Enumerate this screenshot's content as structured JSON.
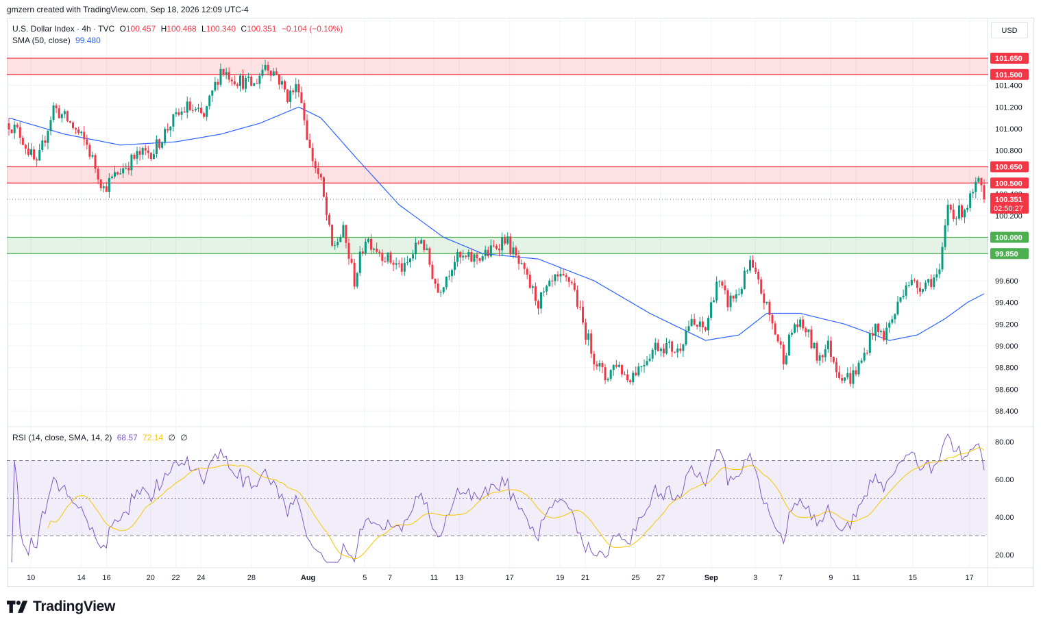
{
  "credit": "gmzern created with TradingView.com, Sep 18, 2026 12:09 UTC-4",
  "legend": {
    "symbol": "U.S. Dollar Index · 4h · TVC",
    "o_label": "O",
    "o_value": "100.457",
    "h_label": "H",
    "h_value": "100.468",
    "l_label": "L",
    "l_value": "100.340",
    "c_label": "C",
    "c_value": "100.351",
    "change": "−0.104 (−0.10%)",
    "sma_label": "SMA (50, close)",
    "sma_value": "99.480",
    "rsi_label": "RSI (14, close, SMA, 14, 2)",
    "rsi_value": "68.57",
    "rsi_ma_value": "72.14",
    "rsi_extra1": "∅",
    "rsi_extra2": "∅"
  },
  "currency": "USD",
  "brand": "TradingView",
  "colors": {
    "up": "#089981",
    "down": "#f23645",
    "sma": "#2962ff",
    "rsi": "#7e57c2",
    "rsi_ma": "#f7c600",
    "resistance_zone": "#f23645",
    "support_zone": "#4caf50"
  },
  "chart_data": [
    {
      "type": "candlestick",
      "ylim": [
        98.3,
        101.8
      ],
      "y_ticks": [
        "101.400",
        "101.200",
        "101.000",
        "100.800",
        "100.400",
        "100.200",
        "99.600",
        "99.400",
        "99.200",
        "99.000",
        "98.800",
        "98.600",
        "98.400"
      ],
      "x_ticks": [
        "10",
        "14",
        "16",
        "20",
        "22",
        "24",
        "28",
        "Aug",
        "5",
        "7",
        "11",
        "13",
        "17",
        "19",
        "21",
        "25",
        "27",
        "Sep",
        "3",
        "7",
        "9",
        "11",
        "15",
        "17"
      ],
      "zones": [
        {
          "kind": "resistance",
          "from": 101.5,
          "to": 101.65,
          "labels": [
            "101.650",
            "101.500"
          ]
        },
        {
          "kind": "resistance",
          "from": 100.5,
          "to": 100.65,
          "labels": [
            "100.650",
            "100.500"
          ]
        },
        {
          "kind": "support",
          "from": 99.85,
          "to": 100.0,
          "labels": [
            "100.000",
            "99.850"
          ]
        }
      ],
      "last_price": {
        "value": 100.351,
        "label": "100.351",
        "countdown": "02:50:27"
      },
      "path_anchors": [
        [
          0,
          101.05
        ],
        [
          4,
          100.95
        ],
        [
          10,
          100.65
        ],
        [
          16,
          101.2
        ],
        [
          22,
          101.05
        ],
        [
          28,
          100.85
        ],
        [
          34,
          100.45
        ],
        [
          40,
          100.62
        ],
        [
          46,
          100.75
        ],
        [
          52,
          100.8
        ],
        [
          58,
          101.05
        ],
        [
          64,
          101.2
        ],
        [
          70,
          101.1
        ],
        [
          76,
          101.55
        ],
        [
          82,
          101.45
        ],
        [
          88,
          101.4
        ],
        [
          92,
          101.6
        ],
        [
          96,
          101.5
        ],
        [
          100,
          101.3
        ],
        [
          104,
          101.4
        ],
        [
          108,
          100.8
        ],
        [
          112,
          100.5
        ],
        [
          116,
          99.9
        ],
        [
          120,
          100.05
        ],
        [
          124,
          99.6
        ],
        [
          128,
          100.0
        ],
        [
          136,
          99.8
        ],
        [
          142,
          99.7
        ],
        [
          148,
          100.0
        ],
        [
          154,
          99.5
        ],
        [
          160,
          99.8
        ],
        [
          166,
          99.8
        ],
        [
          172,
          99.85
        ],
        [
          178,
          100.0
        ],
        [
          184,
          99.7
        ],
        [
          190,
          99.4
        ],
        [
          196,
          99.6
        ],
        [
          202,
          99.6
        ],
        [
          206,
          99.2
        ],
        [
          210,
          98.9
        ],
        [
          214,
          98.7
        ],
        [
          218,
          98.85
        ],
        [
          222,
          98.7
        ],
        [
          226,
          98.8
        ],
        [
          232,
          99.0
        ],
        [
          236,
          99.0
        ],
        [
          240,
          98.95
        ],
        [
          244,
          99.2
        ],
        [
          250,
          99.15
        ],
        [
          254,
          99.6
        ],
        [
          258,
          99.4
        ],
        [
          262,
          99.5
        ],
        [
          266,
          99.75
        ],
        [
          270,
          99.5
        ],
        [
          274,
          99.2
        ],
        [
          278,
          98.9
        ],
        [
          282,
          99.2
        ],
        [
          286,
          99.15
        ],
        [
          290,
          98.9
        ],
        [
          294,
          99.0
        ],
        [
          298,
          98.75
        ],
        [
          302,
          98.7
        ],
        [
          306,
          98.85
        ],
        [
          310,
          99.15
        ],
        [
          314,
          99.1
        ],
        [
          318,
          99.3
        ],
        [
          322,
          99.6
        ],
        [
          326,
          99.55
        ],
        [
          330,
          99.6
        ],
        [
          334,
          99.65
        ],
        [
          337,
          100.3
        ],
        [
          340,
          100.2
        ],
        [
          344,
          100.3
        ],
        [
          348,
          100.5
        ],
        [
          350,
          100.351
        ]
      ],
      "sma_anchors": [
        [
          0,
          101.1
        ],
        [
          20,
          100.95
        ],
        [
          40,
          100.85
        ],
        [
          60,
          100.88
        ],
        [
          76,
          100.95
        ],
        [
          90,
          101.05
        ],
        [
          104,
          101.2
        ],
        [
          112,
          101.1
        ],
        [
          124,
          100.75
        ],
        [
          140,
          100.3
        ],
        [
          156,
          100.0
        ],
        [
          170,
          99.85
        ],
        [
          190,
          99.8
        ],
        [
          210,
          99.6
        ],
        [
          230,
          99.3
        ],
        [
          250,
          99.05
        ],
        [
          262,
          99.1
        ],
        [
          272,
          99.3
        ],
        [
          284,
          99.3
        ],
        [
          300,
          99.2
        ],
        [
          316,
          99.05
        ],
        [
          326,
          99.1
        ],
        [
          336,
          99.25
        ],
        [
          344,
          99.4
        ],
        [
          350,
          99.48
        ]
      ]
    },
    {
      "type": "line",
      "title": "RSI (14, close, SMA, 14, 2)",
      "ylim": [
        15,
        85
      ],
      "y_ticks": [
        "80.00",
        "60.00",
        "40.00",
        "20.00"
      ],
      "levels": [
        70,
        50,
        30
      ],
      "band": [
        30,
        70
      ]
    }
  ]
}
